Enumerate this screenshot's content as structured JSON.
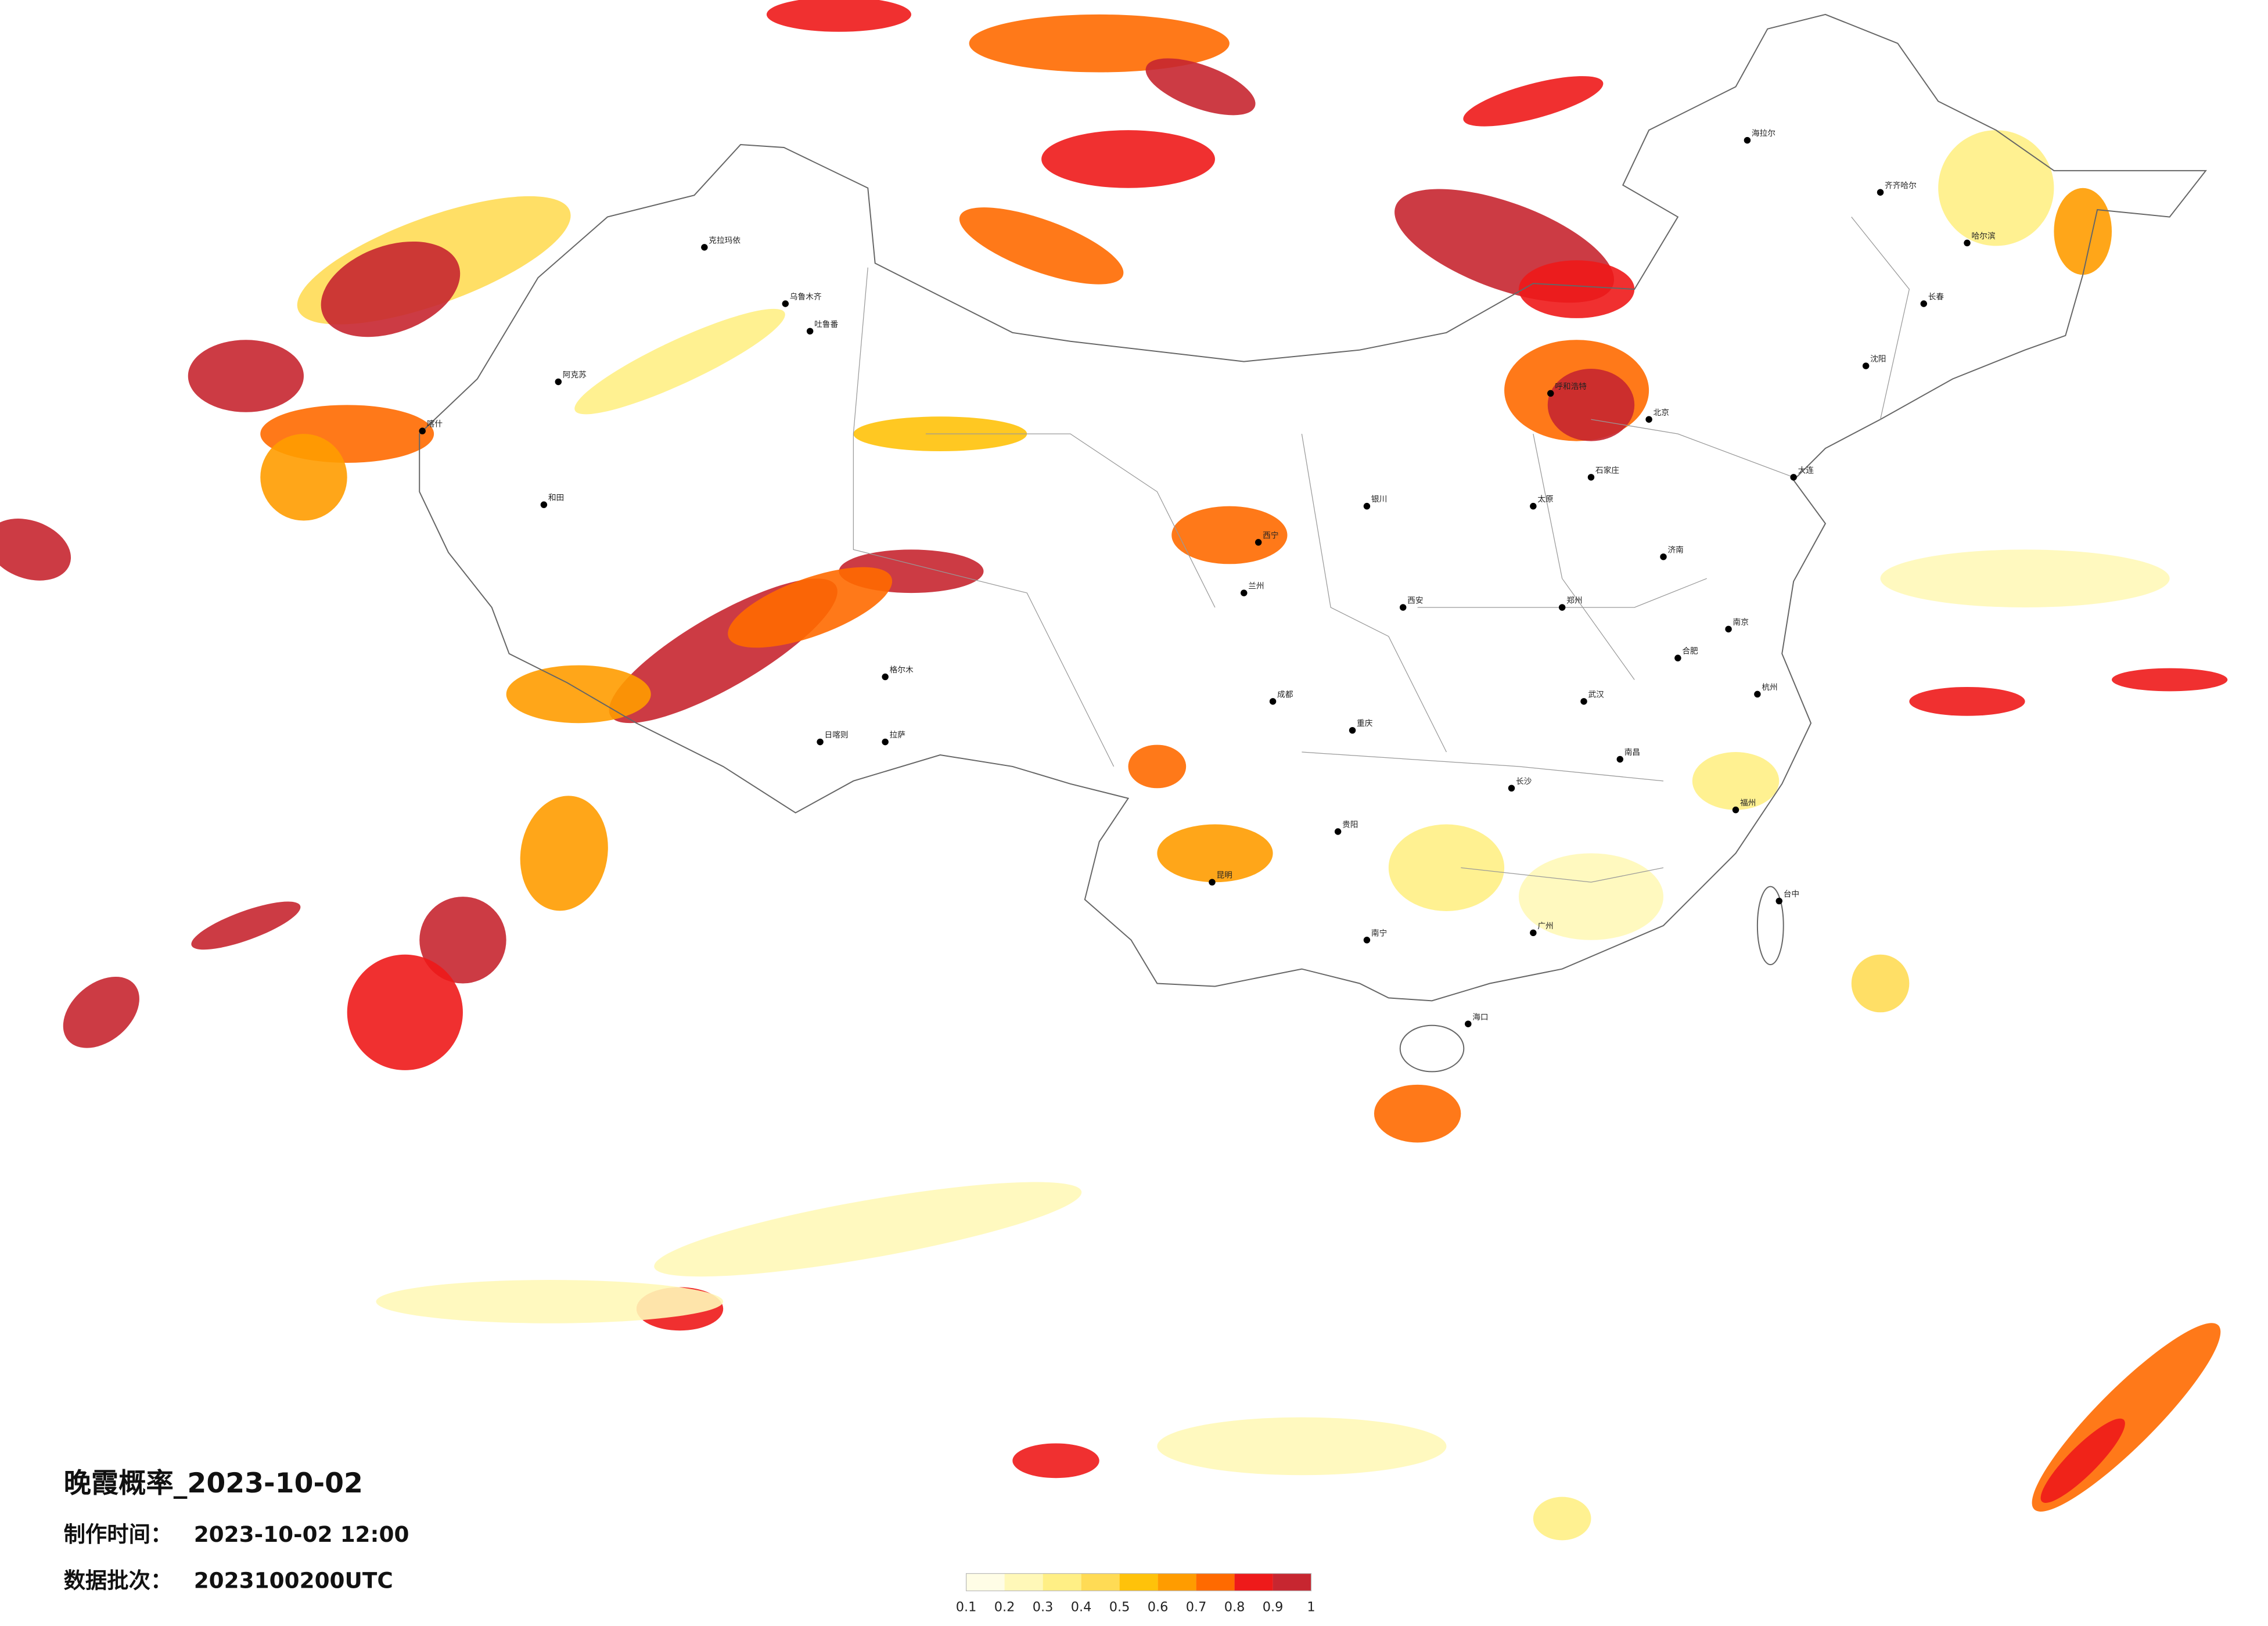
{
  "title": "晚霞概率_2023-10-02",
  "info": [
    {
      "label": "制作时间：",
      "value": "2023-10-02 12:00"
    },
    {
      "label": "数据批次：",
      "value": "2023100200UTC"
    }
  ],
  "legend": {
    "ticks": [
      0.1,
      0.2,
      0.3,
      0.4,
      0.5,
      0.6,
      0.7,
      0.8,
      0.9,
      1
    ],
    "colors": [
      "#fffde6",
      "#fff8b8",
      "#ffef85",
      "#ffdb55",
      "#ffc20a",
      "#ff9c00",
      "#ff6a00",
      "#ee1a1a",
      "#c72630"
    ]
  },
  "cities": [
    "海拉尔",
    "齐齐哈尔",
    "哈尔滨",
    "长春",
    "沈阳",
    "呼和浩特",
    "北京",
    "石家庄",
    "太原",
    "西宁",
    "兰州",
    "银川",
    "西安",
    "克拉玛依",
    "乌鲁木齐",
    "阿克苏",
    "喀什",
    "和田",
    "日喀则",
    "拉萨",
    "成都",
    "重庆",
    "昆明",
    "南宁",
    "海口",
    "长沙",
    "武汉",
    "郑州",
    "济南",
    "南京",
    "杭州",
    "福州",
    "广州",
    "台中",
    "贵阳",
    "南昌",
    "合肥",
    "大连",
    "格尔木",
    "吐鲁番"
  ]
}
